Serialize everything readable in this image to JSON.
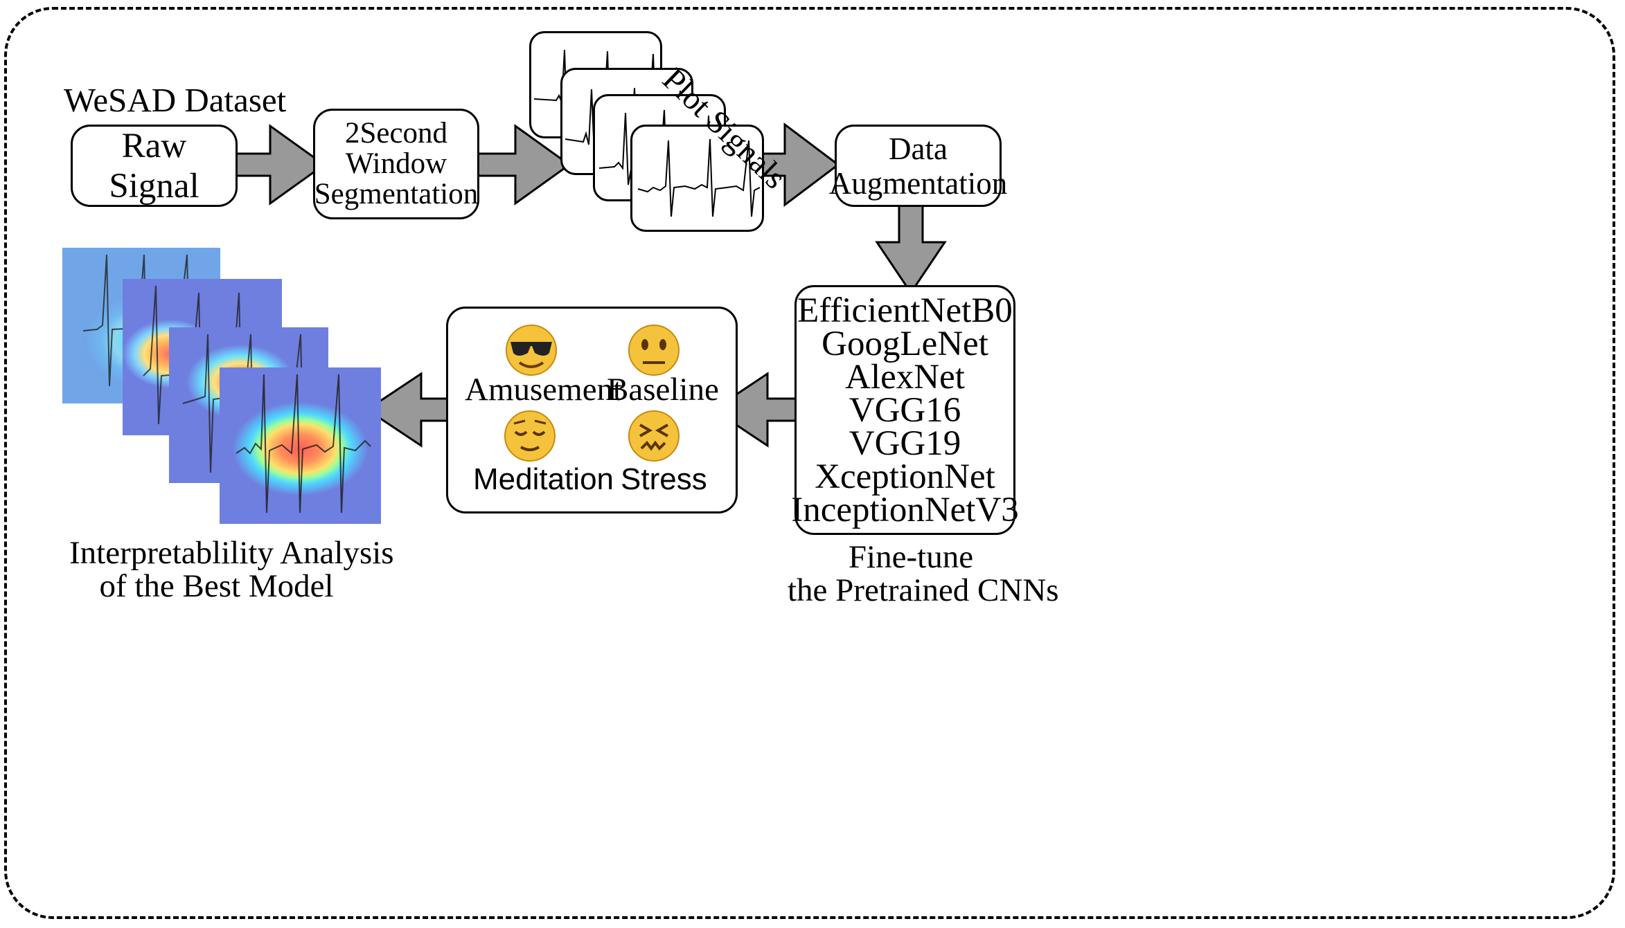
{
  "dataset_label": "WeSAD Dataset",
  "raw_signal": "Raw Signal",
  "segmentation": {
    "line1": "2Second",
    "line2": "Window",
    "line3": "Segmentation"
  },
  "plot_signals": "Plot Signals",
  "augmentation": {
    "line1": "Data",
    "line2": "Augmentation"
  },
  "models": [
    "EfficientNetB0",
    "GoogLeNet",
    "AlexNet",
    "VGG16",
    "VGG19",
    "XceptionNet",
    "InceptionNetV3"
  ],
  "finetune": {
    "line1": "Fine-tune",
    "line2": "the Pretrained CNNs"
  },
  "classes": [
    {
      "label": "Amusement",
      "emoji": "smiling-face-with-sunglasses-icon"
    },
    {
      "label": "Baseline",
      "emoji": "neutral-face-icon"
    },
    {
      "label": "Meditation",
      "emoji": "relieved-face-icon"
    },
    {
      "label": "Stress",
      "emoji": "confounded-face-icon"
    }
  ],
  "interpretability": {
    "line1": "Interpretablility Analysis",
    "line2": "of the Best Model"
  },
  "colors": {
    "arrow": "#999999",
    "border": "#000000",
    "emoji": "#F5C33B",
    "heat_bg": "#6f7fe0"
  }
}
